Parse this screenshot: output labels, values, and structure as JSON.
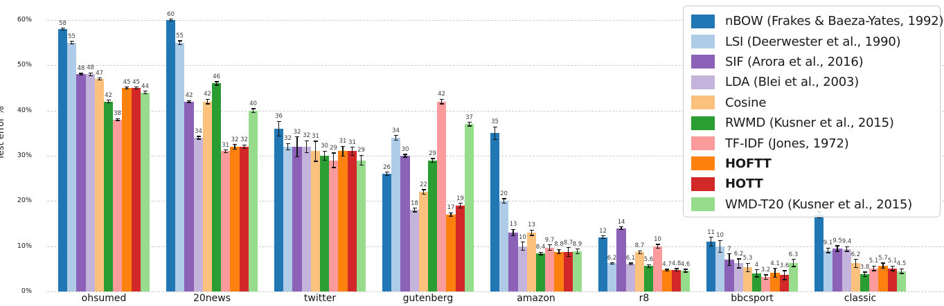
{
  "chart_data": {
    "type": "bar",
    "title": "",
    "xlabel": "",
    "ylabel": "Test error %",
    "ylim": [
      0,
      60
    ],
    "grid": "horizontal-dashed",
    "grid_color": "#cccccc",
    "legend_position": "upper-right",
    "yticks": [
      0,
      10,
      20,
      30,
      40,
      50,
      60
    ],
    "ytick_labels": [
      "0%",
      "10%",
      "20%",
      "30%",
      "40%",
      "50%",
      "60%"
    ],
    "categories": [
      "ohsumed",
      "20news",
      "twitter",
      "gutenberg",
      "amazon",
      "r8",
      "bbcsport",
      "classic"
    ],
    "series": [
      {
        "name": "nBOW (Frakes & Baeza-Yates, 1992)",
        "color": "#2077b4",
        "bold": false,
        "values": [
          58,
          60,
          36,
          26,
          35,
          12,
          11,
          17
        ],
        "errors": [
          0.2,
          0.2,
          1.6,
          0.4,
          1.4,
          0.3,
          1.0,
          0.6
        ]
      },
      {
        "name": "LSI (Deerwester et al., 1990)",
        "color": "#aecbe8",
        "bold": false,
        "values": [
          55,
          55,
          32,
          34,
          20,
          6.2,
          10,
          9.1
        ],
        "errors": [
          0.3,
          0.4,
          0.7,
          0.5,
          0.5,
          0.15,
          1.3,
          0.5
        ]
      },
      {
        "name": "SIF (Arora et al., 2016)",
        "color": "#8b62b8",
        "bold": false,
        "values": [
          48,
          42,
          32,
          30,
          13,
          14,
          7,
          9.5
        ],
        "errors": [
          0.2,
          0.2,
          2.2,
          0.3,
          0.7,
          0.3,
          1.3,
          0.6
        ]
      },
      {
        "name": "LDA (Blei et al., 2003)",
        "color": "#c4b4dc",
        "bold": false,
        "values": [
          48,
          34,
          32,
          18,
          10,
          6.1,
          6.2,
          9.4
        ],
        "errors": [
          0.3,
          0.3,
          1.3,
          0.4,
          0.9,
          0.2,
          1.0,
          0.5
        ]
      },
      {
        "name": "Cosine",
        "color": "#fcc17c",
        "bold": false,
        "values": [
          47,
          42,
          31,
          22,
          13,
          8.7,
          5.3,
          6.2
        ],
        "errors": [
          0.2,
          0.5,
          2.2,
          0.5,
          0.6,
          0.3,
          0.9,
          0.9
        ]
      },
      {
        "name": "RWMD (Kusner et al., 2015)",
        "color": "#2b9e33",
        "bold": false,
        "values": [
          42,
          46,
          30,
          29,
          8.4,
          5.6,
          4,
          3.8
        ],
        "errors": [
          0.3,
          0.4,
          1.0,
          0.4,
          0.3,
          0.3,
          0.8,
          0.5
        ]
      },
      {
        "name": "TF-IDF (Jones, 1972)",
        "color": "#fc9b9b",
        "bold": false,
        "values": [
          38,
          31,
          29,
          42,
          9.7,
          10,
          3.2,
          5.1
        ],
        "errors": [
          0.2,
          0.3,
          1.6,
          0.5,
          0.6,
          0.4,
          0.5,
          0.5
        ]
      },
      {
        "name": "HOFTT",
        "color": "#fc810f",
        "bold": true,
        "values": [
          45,
          32,
          31,
          17,
          8.8,
          4.7,
          4.1,
          5.7
        ],
        "errors": [
          0.2,
          0.5,
          1.1,
          0.4,
          0.5,
          0.2,
          1.0,
          0.6
        ]
      },
      {
        "name": "HOTT",
        "color": "#d32829",
        "bold": true,
        "values": [
          45,
          32,
          31,
          19,
          8.7,
          4.8,
          3.6,
          5.1
        ],
        "errors": [
          0.2,
          0.4,
          0.9,
          0.5,
          1.0,
          0.25,
          1.0,
          0.5
        ]
      },
      {
        "name": "WMD-T20 (Kusner et al., 2015)",
        "color": "#96dc8c",
        "bold": false,
        "values": [
          44,
          40,
          29,
          37,
          8.9,
          4.6,
          6.3,
          4.5
        ],
        "errors": [
          0.3,
          0.4,
          1.1,
          0.4,
          0.5,
          0.3,
          0.8,
          0.5
        ]
      }
    ]
  }
}
